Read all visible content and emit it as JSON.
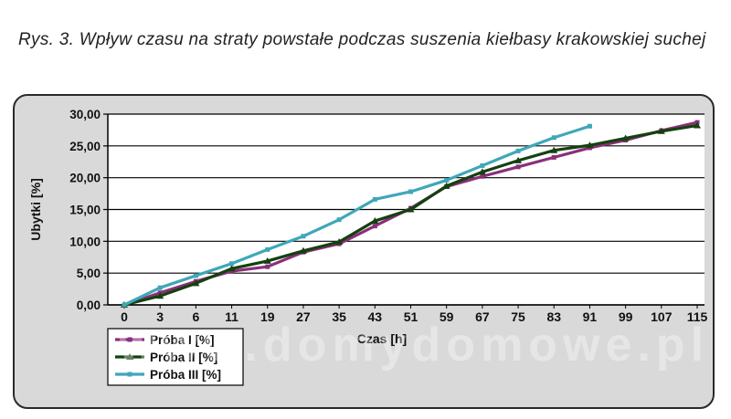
{
  "caption": "Rys. 3. Wpływ czasu na straty powstałe podczas suszenia kiełbasy krakowskiej suchej",
  "watermark": "www.domydomowe.pl",
  "chart_data": {
    "type": "line",
    "title": "",
    "xlabel": "Czas [h]",
    "ylabel": "Ubytki [%]",
    "categories": [
      "0",
      "3",
      "6",
      "11",
      "19",
      "27",
      "35",
      "43",
      "51",
      "59",
      "67",
      "75",
      "83",
      "91",
      "99",
      "107",
      "115"
    ],
    "y_ticks": [
      "0,00",
      "5,00",
      "10,00",
      "15,00",
      "20,00",
      "25,00",
      "30,00"
    ],
    "ylim": [
      0,
      30
    ],
    "grid": "horizontal",
    "legend_position": "bottom-left",
    "series": [
      {
        "name": "Próba I [%]",
        "color": "#8a2f7a",
        "values": [
          0,
          1.9,
          3.7,
          5.3,
          6.0,
          8.3,
          9.6,
          12.4,
          15.2,
          18.6,
          20.2,
          21.7,
          23.2,
          24.7,
          25.9,
          27.4,
          28.7
        ]
      },
      {
        "name": "Próba II [%]",
        "color": "#14410f",
        "values": [
          0,
          1.4,
          3.4,
          5.7,
          6.9,
          8.5,
          9.9,
          13.2,
          15.0,
          18.7,
          20.9,
          22.7,
          24.3,
          25.1,
          26.2,
          27.3,
          28.2
        ]
      },
      {
        "name": "Próba III [%]",
        "color": "#3fa7b8",
        "values": [
          0,
          2.7,
          4.6,
          6.5,
          8.7,
          10.8,
          13.4,
          16.6,
          17.8,
          19.6,
          21.9,
          24.2,
          26.3,
          28.1,
          null,
          null,
          null
        ]
      }
    ]
  }
}
